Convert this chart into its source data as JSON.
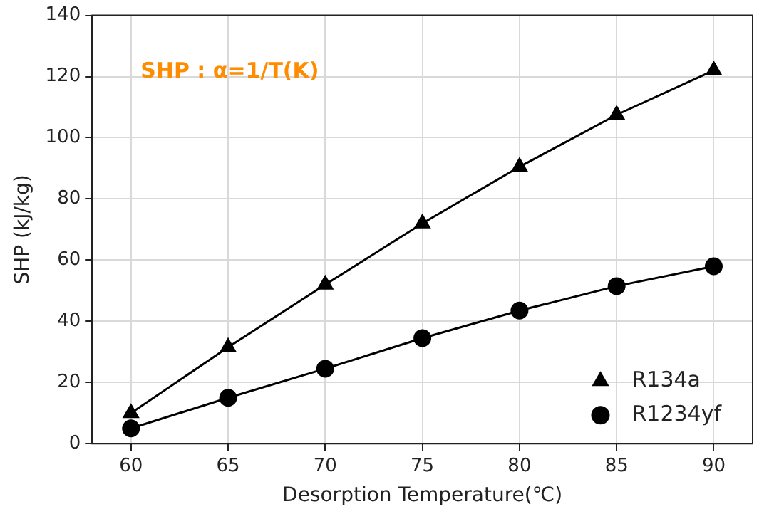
{
  "chart_data": {
    "type": "line",
    "xlabel": "Desorption Temperature(℃)",
    "ylabel": "SHP (kJ/kg)",
    "x": [
      60,
      65,
      70,
      75,
      80,
      85,
      90
    ],
    "xlim": [
      58,
      92
    ],
    "xticks": [
      60,
      65,
      70,
      75,
      80,
      85,
      90
    ],
    "ylim": [
      0,
      140
    ],
    "yticks": [
      0,
      20,
      40,
      60,
      80,
      100,
      120,
      140
    ],
    "grid": true,
    "legend": "bottom right",
    "annotations": [
      "SHP : α=1/T(K)"
    ],
    "series": [
      {
        "name": "R134a",
        "color": "#000000",
        "marker": "triangle",
        "values": [
          10,
          31.5,
          52,
          72,
          90.5,
          107.5,
          122
        ]
      },
      {
        "name": "R1234yf",
        "color": "#000000",
        "marker": "circle",
        "values": [
          5,
          15,
          24.5,
          34.5,
          43.5,
          51.5,
          58
        ]
      }
    ]
  }
}
